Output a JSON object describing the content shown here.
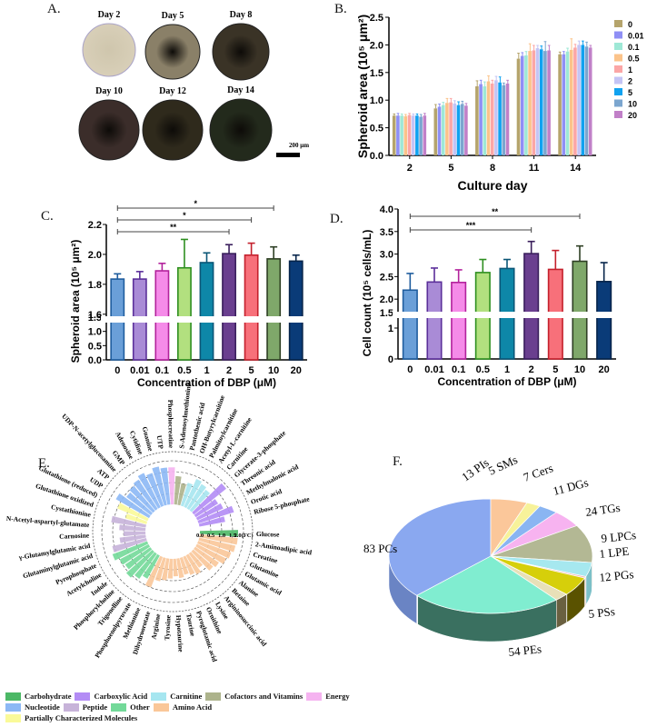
{
  "panel_labels": {
    "A": "A.",
    "B": "B.",
    "C": "C.",
    "D": "D.",
    "E": "E.",
    "F": "F."
  },
  "panelA": {
    "days": [
      "Day 2",
      "Day 5",
      "Day 8",
      "Day 10",
      "Day 12",
      "Day 14"
    ],
    "scale_bar": "200 μm",
    "colors": [
      "#d8cfb8",
      "#8a8068",
      "#3a3326",
      "#3b2d2a",
      "#2f2a1c",
      "#232a1c"
    ]
  },
  "chart_data": [
    {
      "id": "B",
      "type": "bar",
      "title": "",
      "xlabel": "Culture day",
      "ylabel": "Spheroid area (10⁵ μm²)",
      "categories": [
        "2",
        "5",
        "8",
        "11",
        "14"
      ],
      "ylim": [
        0,
        2.5
      ],
      "yticks": [
        "0.0",
        "0.5",
        "1.0",
        "1.5",
        "2.0",
        "2.5"
      ],
      "legend_position": "right",
      "series": [
        {
          "name": "0",
          "color": "#b5a46c",
          "values": [
            0.72,
            0.85,
            1.25,
            1.75,
            1.83
          ],
          "err": [
            0.03,
            0.07,
            0.1,
            0.1,
            0.04
          ]
        },
        {
          "name": "0.01",
          "color": "#8f8ff5",
          "values": [
            0.72,
            0.88,
            1.29,
            1.8,
            1.83
          ],
          "err": [
            0.04,
            0.05,
            0.07,
            0.06,
            0.05
          ]
        },
        {
          "name": "0.1",
          "color": "#9ee8d6",
          "values": [
            0.72,
            0.91,
            1.25,
            1.81,
            1.88
          ],
          "err": [
            0.03,
            0.05,
            0.08,
            0.07,
            0.06
          ]
        },
        {
          "name": "0.5",
          "color": "#fbc38a",
          "values": [
            0.71,
            0.95,
            1.34,
            1.89,
            1.91
          ],
          "err": [
            0.03,
            0.08,
            0.1,
            0.13,
            0.2
          ]
        },
        {
          "name": "1",
          "color": "#fba6a6",
          "values": [
            0.73,
            0.96,
            1.3,
            1.9,
            1.95
          ],
          "err": [
            0.03,
            0.07,
            0.06,
            0.09,
            0.06
          ]
        },
        {
          "name": "2",
          "color": "#c4c4f5",
          "values": [
            0.72,
            0.94,
            1.36,
            1.94,
            2.0
          ],
          "err": [
            0.03,
            0.05,
            0.07,
            0.05,
            0.07
          ]
        },
        {
          "name": "5",
          "color": "#10a2f0",
          "values": [
            0.72,
            0.91,
            1.32,
            1.92,
            2.0
          ],
          "err": [
            0.03,
            0.06,
            0.1,
            0.06,
            0.07
          ]
        },
        {
          "name": "10",
          "color": "#7ba6cf",
          "values": [
            0.7,
            0.93,
            1.27,
            1.89,
            1.97
          ],
          "err": [
            0.04,
            0.05,
            0.04,
            0.17,
            0.08
          ]
        },
        {
          "name": "20",
          "color": "#c180c8",
          "values": [
            0.72,
            0.9,
            1.3,
            1.9,
            1.95
          ],
          "err": [
            0.04,
            0.04,
            0.06,
            0.09,
            0.04
          ]
        }
      ]
    },
    {
      "id": "C",
      "type": "bar",
      "xlabel": "Concentration of DBP (μM)",
      "ylabel": "Spheroid area (10⁵ μm²)",
      "categories": [
        "0",
        "0.01",
        "0.1",
        "0.5",
        "1",
        "2",
        "5",
        "10",
        "20"
      ],
      "values": [
        1.835,
        1.835,
        1.89,
        1.91,
        1.945,
        2.005,
        1.995,
        1.97,
        1.955
      ],
      "err": [
        0.035,
        0.05,
        0.05,
        0.19,
        0.065,
        0.06,
        0.08,
        0.08,
        0.04
      ],
      "fill": [
        "#6a9fd8",
        "#a98bd6",
        "#f58be8",
        "#b2e07f",
        "#0e87a8",
        "#6a3f8f",
        "#f7707a",
        "#7fa86a",
        "#0a3b78"
      ],
      "stroke": [
        "#1f5d9e",
        "#5b2f9a",
        "#b3229c",
        "#2e8f20",
        "#0b5677",
        "#3a1f5c",
        "#c4202c",
        "#2e3f24",
        "#06244a"
      ],
      "axis_break": [
        1.5,
        1.55
      ],
      "yticks_lower": [
        "0.0",
        "0.5",
        "1.0",
        "1.5"
      ],
      "yticks_upper": [
        "1.6",
        "1.8",
        "2.0",
        "2.2"
      ],
      "ylim_upper": [
        1.55,
        2.2
      ],
      "significance": [
        {
          "from": "0",
          "to": "10",
          "label": "*"
        },
        {
          "from": "0",
          "to": "5",
          "label": "*"
        },
        {
          "from": "0",
          "to": "2",
          "label": "**"
        }
      ]
    },
    {
      "id": "D",
      "type": "bar",
      "xlabel": "Concentration of DBP (μM)",
      "ylabel": "Cell count (10⁵ cells/mL)",
      "categories": [
        "0",
        "0.01",
        "0.1",
        "0.5",
        "1",
        "2",
        "5",
        "10",
        "20"
      ],
      "values": [
        2.2,
        2.38,
        2.37,
        2.59,
        2.68,
        3.01,
        2.66,
        2.84,
        2.39
      ],
      "err": [
        0.37,
        0.31,
        0.28,
        0.29,
        0.2,
        0.27,
        0.42,
        0.34,
        0.42
      ],
      "fill": [
        "#6a9fd8",
        "#a98bd6",
        "#f58be8",
        "#b2e07f",
        "#0e87a8",
        "#6a3f8f",
        "#f7707a",
        "#7fa86a",
        "#0a3b78"
      ],
      "stroke": [
        "#1f5d9e",
        "#5b2f9a",
        "#b3229c",
        "#2e8f20",
        "#0b5677",
        "#3a1f5c",
        "#c4202c",
        "#2e3f24",
        "#06244a"
      ],
      "axis_break": [
        1.5,
        1.6
      ],
      "yticks_lower": [
        "0",
        "1",
        "1.5"
      ],
      "yticks_upper": [
        "2.0",
        "2.5",
        "3.0",
        "3.5",
        "4.0"
      ],
      "ylim_upper": [
        1.6,
        4.0
      ],
      "significance": [
        {
          "from": "0",
          "to": "10",
          "label": "**"
        },
        {
          "from": "0",
          "to": "2",
          "label": "***"
        }
      ]
    },
    {
      "id": "E",
      "type": "bar",
      "subtype": "circular",
      "scale_label": [
        "0.0",
        "0.5",
        "1.0",
        "1.5",
        "2.0(FC)"
      ],
      "rmax": 2.0,
      "categories_legend": [
        {
          "name": "Carbohydrate",
          "color": "#4cb866"
        },
        {
          "name": "Carboxylic Acid",
          "color": "#b38cf5"
        },
        {
          "name": "Carnitine",
          "color": "#a6e6f0"
        },
        {
          "name": "Cofactors and Vitamins",
          "color": "#adb38c"
        },
        {
          "name": "Energy",
          "color": "#f5b3f0"
        },
        {
          "name": "Nucleotide",
          "color": "#8cb8f5"
        },
        {
          "name": "Peptide",
          "color": "#c7b3d9"
        },
        {
          "name": "Other",
          "color": "#73d999"
        },
        {
          "name": "Amino Acid",
          "color": "#fac799"
        },
        {
          "name": "Partially Characterized Molecules",
          "color": "#fafa99"
        }
      ],
      "metabolites": [
        {
          "name": "Glucose",
          "cat": "Carbohydrate",
          "fc": 1.75
        },
        {
          "name": "2-Aminoadipic acid",
          "cat": "Amino Acid",
          "fc": 1.75
        },
        {
          "name": "Creatine",
          "cat": "Amino Acid",
          "fc": 1.7
        },
        {
          "name": "Glutamine",
          "cat": "Amino Acid",
          "fc": 1.6
        },
        {
          "name": "Glutamic acid",
          "cat": "Amino Acid",
          "fc": 1.5
        },
        {
          "name": "Alanine",
          "cat": "Amino Acid",
          "fc": 1.3
        },
        {
          "name": "Betaine",
          "cat": "Amino Acid",
          "fc": 1.2
        },
        {
          "name": "Argininosuccinic acid",
          "cat": "Amino Acid",
          "fc": 0.8
        },
        {
          "name": "Lysine",
          "cat": "Amino Acid",
          "fc": 1.0
        },
        {
          "name": "Ornithine",
          "cat": "Amino Acid",
          "fc": 0.9
        },
        {
          "name": "Pyroglutamic acid",
          "cat": "Amino Acid",
          "fc": 0.8
        },
        {
          "name": "Taurine",
          "cat": "Amino Acid",
          "fc": 0.9
        },
        {
          "name": "Hypotaurine",
          "cat": "Amino Acid",
          "fc": 0.8
        },
        {
          "name": "Tyrosine",
          "cat": "Amino Acid",
          "fc": 0.9
        },
        {
          "name": "Arginine",
          "cat": "Amino Acid",
          "fc": 1.0
        },
        {
          "name": "Dihydroorotate",
          "cat": "Amino Acid",
          "fc": 1.1
        },
        {
          "name": "Methionine",
          "cat": "Amino Acid",
          "fc": 1.5
        },
        {
          "name": "Phosphoenolpyruvate",
          "cat": "Other",
          "fc": 1.2
        },
        {
          "name": "Trigonelline",
          "cat": "Other",
          "fc": 1.4
        },
        {
          "name": "Phosphorylcholine",
          "cat": "Other",
          "fc": 1.6
        },
        {
          "name": "Indole",
          "cat": "Other",
          "fc": 1.4
        },
        {
          "name": "Acetylcholine",
          "cat": "Other",
          "fc": 1.5
        },
        {
          "name": "Pyrophosphate",
          "cat": "Other",
          "fc": 1.7
        },
        {
          "name": "Glutaminylglutamic acid",
          "cat": "Peptide",
          "fc": 1.6
        },
        {
          "name": "γ-Glutamylglutamic acid",
          "cat": "Peptide",
          "fc": 1.2
        },
        {
          "name": "Carnosine",
          "cat": "Peptide",
          "fc": 1.0
        },
        {
          "name": "N-Acetyl-aspartyl-glutamate",
          "cat": "Peptide",
          "fc": 1.2
        },
        {
          "name": "Cystathionine",
          "cat": "Peptide",
          "fc": 1.6
        },
        {
          "name": "Glutathione oxidized",
          "cat": "Partially Characterized Molecules",
          "fc": 1.0
        },
        {
          "name": "Glutathione (reduced)",
          "cat": "Partially Characterized Molecules",
          "fc": 1.5
        },
        {
          "name": "UDP",
          "cat": "Nucleotide",
          "fc": 1.75
        },
        {
          "name": "ATP",
          "cat": "Nucleotide",
          "fc": 1.4
        },
        {
          "name": "UDP-N-acetylglucosamine",
          "cat": "Nucleotide",
          "fc": 1.5
        },
        {
          "name": "GMP",
          "cat": "Nucleotide",
          "fc": 1.6
        },
        {
          "name": "Adenosine",
          "cat": "Nucleotide",
          "fc": 1.75
        },
        {
          "name": "Cytidine",
          "cat": "Nucleotide",
          "fc": 1.6
        },
        {
          "name": "Guanine",
          "cat": "Nucleotide",
          "fc": 1.8
        },
        {
          "name": "UTP",
          "cat": "Nucleotide",
          "fc": 1.7
        },
        {
          "name": "Phosphocreatine",
          "cat": "Energy",
          "fc": 1.7
        },
        {
          "name": "S-Adenosylmethionine",
          "cat": "Cofactors and Vitamins",
          "fc": 1.3
        },
        {
          "name": "Pantothenic acid",
          "cat": "Cofactors and Vitamins",
          "fc": 1.0
        },
        {
          "name": "OH-Butyrylcarnitine",
          "cat": "Carnitine",
          "fc": 1.1
        },
        {
          "name": "Palmitoylcarnitine",
          "cat": "Carnitine",
          "fc": 1.4
        },
        {
          "name": "Acetyl-L-carnitine",
          "cat": "Carnitine",
          "fc": 1.3
        },
        {
          "name": "Carnitine",
          "cat": "Carnitine",
          "fc": 1.2
        },
        {
          "name": "Glycerate-3-phosphate",
          "cat": "Carboxylic Acid",
          "fc": 1.9
        },
        {
          "name": "Threonic acid",
          "cat": "Carboxylic Acid",
          "fc": 1.2
        },
        {
          "name": "Methylmalonic acid",
          "cat": "Carboxylic Acid",
          "fc": 1.3
        },
        {
          "name": "Orotic acid",
          "cat": "Carboxylic Acid",
          "fc": 1.7
        },
        {
          "name": "Ribose 5-phosphate",
          "cat": "Carboxylic Acid",
          "fc": 1.2
        }
      ]
    },
    {
      "id": "F",
      "type": "pie",
      "subtype": "3d",
      "slices": [
        {
          "label": "83 PCs",
          "value": 83,
          "color": "#8aa8f0",
          "side": "#6a84c4"
        },
        {
          "label": "13 PIs",
          "value": 13,
          "color": "#fbc79a",
          "side": "#d9a679"
        },
        {
          "label": "5 SMs",
          "value": 5,
          "color": "#f7f29a",
          "side": "#d0cb70"
        },
        {
          "label": "7 Cers",
          "value": 7,
          "color": "#8ab5f2",
          "side": "#5f8dcc"
        },
        {
          "label": "11 DGs",
          "value": 11,
          "color": "#f7b3f0",
          "side": "#cf8cc8"
        },
        {
          "label": "24 TGs",
          "value": 24,
          "color": "#b3b894",
          "side": "#8a8e6e"
        },
        {
          "label": "9 LPCs",
          "value": 9,
          "color": "#a6e8ef",
          "side": "#7cc0c8"
        },
        {
          "label": "1 LPE",
          "value": 1,
          "color": "#f2b8b8",
          "side": "#c99090"
        },
        {
          "label": "12 PGs",
          "value": 12,
          "color": "#d6cf0a",
          "side": "#5a5200"
        },
        {
          "label": "5 PSs",
          "value": 5,
          "color": "#e8e0b8",
          "side": "#6a6040"
        },
        {
          "label": "54 PEs",
          "value": 54,
          "color": "#80edd0",
          "side": "#3a7060"
        }
      ]
    }
  ]
}
